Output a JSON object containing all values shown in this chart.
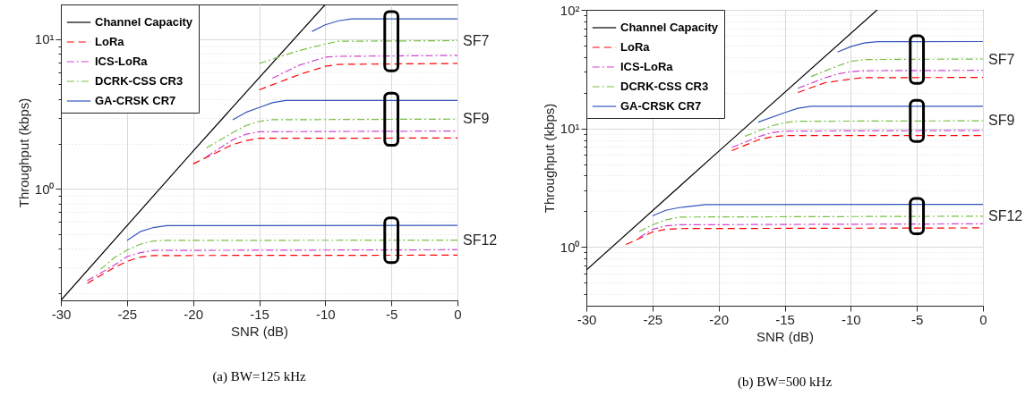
{
  "chart_data": [
    {
      "type": "line",
      "title": "(a) BW=125 kHz",
      "xlabel": "SNR (dB)",
      "ylabel": "Throughput (kbps)",
      "log": "y",
      "grid": true,
      "legend": "top left",
      "xlim": [
        -30,
        0
      ],
      "xticks": [
        -30,
        -25,
        -20,
        -15,
        -10,
        -5,
        0
      ],
      "ylim": [
        0.18,
        17.1
      ],
      "yticks": [
        {
          "value": 0.2,
          "label": null
        },
        {
          "value": 0.3,
          "label": null
        },
        {
          "value": 0.4,
          "label": null
        },
        {
          "value": 0.5,
          "label": null
        },
        {
          "value": 0.6,
          "label": null
        },
        {
          "value": 0.7,
          "label": null
        },
        {
          "value": 0.8,
          "label": null
        },
        {
          "value": 0.9,
          "label": null
        },
        {
          "value": 1,
          "label": "10⁰"
        },
        {
          "value": 2,
          "label": null
        },
        {
          "value": 3,
          "label": null
        },
        {
          "value": 4,
          "label": null
        },
        {
          "value": 5,
          "label": null
        },
        {
          "value": 6,
          "label": null
        },
        {
          "value": 7,
          "label": null
        },
        {
          "value": 8,
          "label": null
        },
        {
          "value": 9,
          "label": null
        },
        {
          "value": 10,
          "label": "10¹"
        }
      ],
      "series": [
        {
          "name": "Channel Capacity",
          "color": "#000000",
          "line_style": "solid",
          "x": [
            -30,
            -20,
            -10
          ],
          "values": [
            0.18,
            1.79,
            17.1
          ]
        },
        {
          "name": "LoRa",
          "color": "#ff0000",
          "line_style": "dashed",
          "x": [
            -15,
            -12,
            -10,
            -9,
            0
          ],
          "values": [
            4.6,
            5.8,
            6.6,
            6.8,
            6.9
          ]
        },
        {
          "name": "ICS-LoRa",
          "color": "#cc44cc",
          "line_style": "dashdot",
          "x": [
            -14,
            -12,
            -10,
            -9,
            0
          ],
          "values": [
            5.5,
            6.7,
            7.6,
            7.7,
            7.8
          ]
        },
        {
          "name": "DCRK-CSS CR3",
          "color": "#77c043",
          "line_style": "dashdot",
          "x": [
            -15,
            -12,
            -10,
            -9,
            0
          ],
          "values": [
            6.9,
            8.4,
            9.3,
            9.7,
            9.8
          ]
        },
        {
          "name": "GA-CRSK CR7",
          "color": "#3355bb",
          "line_style": "solid",
          "x": [
            -11,
            -10,
            -9,
            -8,
            0
          ],
          "values": [
            11.3,
            12.5,
            13.3,
            13.7,
            13.7
          ]
        },
        {
          "color": "#ff0000",
          "line_style": "dashed",
          "x": [
            -20,
            -17,
            -16,
            -15,
            0
          ],
          "values": [
            1.47,
            1.98,
            2.1,
            2.18,
            2.19
          ]
        },
        {
          "color": "#cc44cc",
          "line_style": "dashdot",
          "x": [
            -19,
            -17,
            -16,
            -15,
            0
          ],
          "values": [
            1.64,
            2.13,
            2.32,
            2.41,
            2.44
          ]
        },
        {
          "color": "#77c043",
          "line_style": "dashdot",
          "x": [
            -19,
            -17,
            -16,
            -15,
            -14,
            0
          ],
          "values": [
            1.88,
            2.38,
            2.65,
            2.83,
            2.9,
            2.93
          ]
        },
        {
          "color": "#3355bb",
          "line_style": "solid",
          "x": [
            -17,
            -16,
            -15,
            -14,
            -13,
            0
          ],
          "values": [
            2.9,
            3.25,
            3.5,
            3.77,
            3.9,
            3.9
          ]
        },
        {
          "color": "#ff0000",
          "line_style": "dashed",
          "x": [
            -28,
            -26,
            -25,
            -24,
            -23,
            0
          ],
          "values": [
            0.234,
            0.297,
            0.328,
            0.35,
            0.359,
            0.361
          ]
        },
        {
          "color": "#cc44cc",
          "line_style": "dashdot",
          "x": [
            -28,
            -26,
            -25,
            -24,
            -23,
            0
          ],
          "values": [
            0.244,
            0.308,
            0.353,
            0.375,
            0.388,
            0.392
          ]
        },
        {
          "color": "#77c043",
          "line_style": "dashdot",
          "x": [
            -27,
            -26,
            -25,
            -24,
            -23,
            -22,
            0
          ],
          "values": [
            0.29,
            0.345,
            0.39,
            0.427,
            0.449,
            0.453,
            0.455
          ]
        },
        {
          "color": "#3355bb",
          "line_style": "solid",
          "x": [
            -25,
            -24,
            -23,
            -22,
            0
          ],
          "values": [
            0.453,
            0.518,
            0.552,
            0.569,
            0.571
          ]
        }
      ],
      "annotations": [
        "SF7",
        "SF9",
        "SF12"
      ]
    },
    {
      "type": "line",
      "title": "(b) BW=500 kHz",
      "xlabel": "SNR (dB)",
      "ylabel": "Throughput (kbps)",
      "log": "y",
      "grid": true,
      "legend": "top left",
      "xlim": [
        -30,
        0
      ],
      "xticks": [
        -30,
        -25,
        -20,
        -15,
        -10,
        -5,
        0
      ],
      "ylim": [
        0.32,
        100
      ],
      "yticks": [
        {
          "value": 0.4,
          "label": null
        },
        {
          "value": 0.5,
          "label": null
        },
        {
          "value": 0.6,
          "label": null
        },
        {
          "value": 0.7,
          "label": null
        },
        {
          "value": 0.8,
          "label": null
        },
        {
          "value": 0.9,
          "label": null
        },
        {
          "value": 1,
          "label": "10⁰"
        },
        {
          "value": 2,
          "label": null
        },
        {
          "value": 3,
          "label": null
        },
        {
          "value": 4,
          "label": null
        },
        {
          "value": 5,
          "label": null
        },
        {
          "value": 6,
          "label": null
        },
        {
          "value": 7,
          "label": null
        },
        {
          "value": 8,
          "label": null
        },
        {
          "value": 9,
          "label": null
        },
        {
          "value": 10,
          "label": "10¹"
        },
        {
          "value": 20,
          "label": null
        },
        {
          "value": 30,
          "label": null
        },
        {
          "value": 40,
          "label": null
        },
        {
          "value": 50,
          "label": null
        },
        {
          "value": 60,
          "label": null
        },
        {
          "value": 70,
          "label": null
        },
        {
          "value": 80,
          "label": null
        },
        {
          "value": 90,
          "label": null
        },
        {
          "value": 100,
          "label": "10²"
        }
      ],
      "series": [
        {
          "name": "Channel Capacity",
          "color": "#000000",
          "line_style": "solid",
          "x": [
            -30,
            -20,
            -8
          ],
          "values": [
            0.64,
            6.4,
            100
          ]
        },
        {
          "name": "LoRa",
          "color": "#ff0000",
          "line_style": "dashed",
          "x": [
            -14,
            -12,
            -10,
            -9,
            0
          ],
          "values": [
            20.1,
            24.2,
            26.1,
            26.8,
            26.9
          ]
        },
        {
          "name": "ICS-LoRa",
          "color": "#cc44cc",
          "line_style": "dashdot",
          "x": [
            -14,
            -12,
            -11,
            -10,
            -9,
            0
          ],
          "values": [
            21.8,
            26.6,
            28.8,
            30.1,
            30.7,
            30.9
          ]
        },
        {
          "name": "DCRK-CSS CR3",
          "color": "#77c043",
          "line_style": "dashdot",
          "x": [
            -13,
            -11,
            -10,
            -9,
            0
          ],
          "values": [
            27.4,
            33.6,
            36.7,
            38.1,
            38.5
          ]
        },
        {
          "name": "GA-CRSK CR7",
          "color": "#3355bb",
          "line_style": "solid",
          "x": [
            -11,
            -10,
            -9,
            -8,
            0
          ],
          "values": [
            44,
            49,
            52.5,
            53.8,
            54
          ]
        },
        {
          "color": "#ff0000",
          "line_style": "dashed",
          "x": [
            -19,
            -17,
            -16,
            -15,
            0
          ],
          "values": [
            6.5,
            8,
            8.5,
            8.7,
            8.7
          ]
        },
        {
          "color": "#cc44cc",
          "line_style": "dashdot",
          "x": [
            -19,
            -17,
            -16,
            -15,
            0
          ],
          "values": [
            6.9,
            8.5,
            9.2,
            9.5,
            9.6
          ]
        },
        {
          "color": "#77c043",
          "line_style": "dashdot",
          "x": [
            -18,
            -16,
            -15,
            -14,
            0
          ],
          "values": [
            8.6,
            10.5,
            11.2,
            11.5,
            11.6
          ]
        },
        {
          "color": "#3355bb",
          "line_style": "solid",
          "x": [
            -17,
            -15,
            -14,
            -13,
            0
          ],
          "values": [
            11.3,
            13.6,
            14.8,
            15.4,
            15.4
          ]
        },
        {
          "color": "#ff0000",
          "line_style": "dashed",
          "x": [
            -27,
            -26,
            -25,
            -24,
            -23,
            0
          ],
          "values": [
            1.05,
            1.18,
            1.34,
            1.41,
            1.43,
            1.45
          ]
        },
        {
          "color": "#cc44cc",
          "line_style": "dashdot",
          "x": [
            -26,
            -25,
            -24,
            -23,
            0
          ],
          "values": [
            1.2,
            1.41,
            1.51,
            1.54,
            1.57
          ]
        },
        {
          "color": "#77c043",
          "line_style": "dashdot",
          "x": [
            -26,
            -25,
            -24,
            -23,
            0
          ],
          "values": [
            1.35,
            1.54,
            1.69,
            1.79,
            1.82
          ]
        },
        {
          "color": "#3355bb",
          "line_style": "solid",
          "x": [
            -25,
            -24,
            -23,
            -21,
            0
          ],
          "values": [
            1.83,
            2.04,
            2.15,
            2.28,
            2.29
          ]
        }
      ],
      "annotations": [
        "SF7",
        "SF9",
        "SF12"
      ]
    }
  ]
}
